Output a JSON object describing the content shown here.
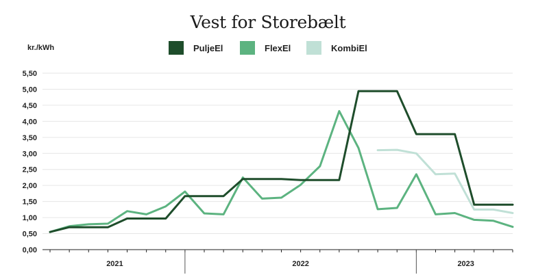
{
  "chart_data": {
    "type": "line",
    "title": "Vest for Storebælt",
    "ylabel": "kr./kWh",
    "ylim": [
      0,
      5.5
    ],
    "yticks": [
      "0,00",
      "0,50",
      "1,00",
      "1,50",
      "2,00",
      "2,50",
      "3,00",
      "3,50",
      "4,00",
      "4,50",
      "5,00",
      "5,50"
    ],
    "year_labels": [
      "2021",
      "2022",
      "2023"
    ],
    "x_points": 25,
    "grid": true,
    "legend_position": "top",
    "series": [
      {
        "name": "PuljeEl",
        "color": "#1e4d2b",
        "values": [
          0.55,
          0.7,
          0.7,
          0.7,
          0.97,
          0.97,
          0.97,
          1.67,
          1.67,
          1.67,
          2.2,
          2.2,
          2.2,
          2.17,
          2.17,
          2.17,
          4.94,
          4.94,
          4.94,
          3.6,
          3.6,
          3.6,
          1.4,
          1.4,
          1.4
        ]
      },
      {
        "name": "FlexEl",
        "color": "#5cb380",
        "values": [
          0.55,
          0.73,
          0.79,
          0.81,
          1.2,
          1.1,
          1.35,
          1.81,
          1.13,
          1.1,
          2.25,
          1.59,
          1.62,
          2.02,
          2.6,
          4.32,
          3.17,
          1.26,
          1.3,
          2.35,
          1.1,
          1.14,
          0.93,
          0.9,
          0.71
        ]
      },
      {
        "name": "KombiEl",
        "color": "#c0e0d6",
        "values": [
          null,
          null,
          null,
          null,
          null,
          null,
          null,
          null,
          null,
          null,
          null,
          null,
          null,
          null,
          null,
          null,
          null,
          3.1,
          3.11,
          3.0,
          2.35,
          2.37,
          1.25,
          1.25,
          1.14
        ]
      }
    ]
  }
}
